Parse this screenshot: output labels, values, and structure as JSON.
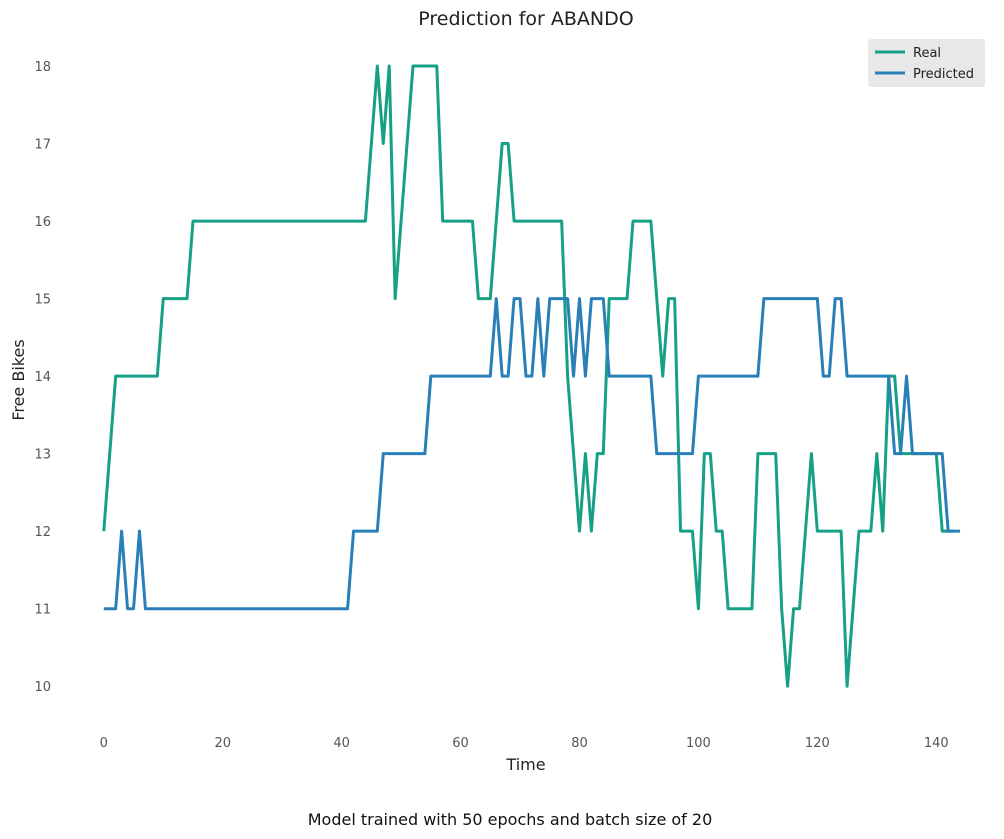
{
  "chart_data": {
    "type": "line",
    "title": "Prediction for ABANDO",
    "xlabel": "Time",
    "ylabel": "Free Bikes",
    "caption": "Model trained with 50 epochs and batch size of 20",
    "xlim": [
      -4,
      145
    ],
    "ylim": [
      9.5,
      18.4
    ],
    "x_ticks": [
      0,
      20,
      40,
      60,
      80,
      100,
      120,
      140
    ],
    "y_ticks": [
      10,
      11,
      12,
      13,
      14,
      15,
      16,
      17,
      18
    ],
    "grid": false,
    "legend_position": "top-right",
    "series": [
      {
        "name": "Real",
        "color": "#16a085",
        "values": [
          12,
          13,
          14,
          14,
          14,
          14,
          14,
          14,
          14,
          14,
          15,
          15,
          15,
          15,
          15,
          16,
          16,
          16,
          16,
          16,
          16,
          16,
          16,
          16,
          16,
          16,
          16,
          16,
          16,
          16,
          16,
          16,
          16,
          16,
          16,
          16,
          16,
          16,
          16,
          16,
          16,
          16,
          16,
          16,
          16,
          17,
          18,
          17,
          18,
          15,
          16,
          17,
          18,
          18,
          18,
          18,
          18,
          16,
          16,
          16,
          16,
          16,
          16,
          15,
          15,
          15,
          16,
          17,
          17,
          16,
          16,
          16,
          16,
          16,
          16,
          16,
          16,
          16,
          14,
          13,
          12,
          13,
          12,
          13,
          13,
          15,
          15,
          15,
          15,
          16,
          16,
          16,
          16,
          15,
          14,
          15,
          15,
          12,
          12,
          12,
          11,
          13,
          13,
          12,
          12,
          11,
          11,
          11,
          11,
          11,
          13,
          13,
          13,
          13,
          11,
          10,
          11,
          11,
          12,
          13,
          12,
          12,
          12,
          12,
          12,
          10,
          11,
          12,
          12,
          12,
          13,
          12,
          14,
          14,
          13,
          13,
          13,
          13,
          13,
          13,
          13,
          12,
          12,
          12
        ]
      },
      {
        "name": "Predicted",
        "color": "#2980b9",
        "values": [
          11,
          11,
          11,
          12,
          11,
          11,
          12,
          11,
          11,
          11,
          11,
          11,
          11,
          11,
          11,
          11,
          11,
          11,
          11,
          11,
          11,
          11,
          11,
          11,
          11,
          11,
          11,
          11,
          11,
          11,
          11,
          11,
          11,
          11,
          11,
          11,
          11,
          11,
          11,
          11,
          11,
          11,
          12,
          12,
          12,
          12,
          12,
          13,
          13,
          13,
          13,
          13,
          13,
          13,
          13,
          14,
          14,
          14,
          14,
          14,
          14,
          14,
          14,
          14,
          14,
          14,
          15,
          14,
          14,
          15,
          15,
          14,
          14,
          15,
          14,
          15,
          15,
          15,
          15,
          14,
          15,
          14,
          15,
          15,
          15,
          14,
          14,
          14,
          14,
          14,
          14,
          14,
          14,
          13,
          13,
          13,
          13,
          13,
          13,
          13,
          14,
          14,
          14,
          14,
          14,
          14,
          14,
          14,
          14,
          14,
          14,
          15,
          15,
          15,
          15,
          15,
          15,
          15,
          15,
          15,
          15,
          14,
          14,
          15,
          15,
          14,
          14,
          14,
          14,
          14,
          14,
          14,
          14,
          13,
          13,
          14,
          13,
          13,
          13,
          13,
          13,
          13,
          12,
          12,
          12
        ]
      }
    ]
  }
}
